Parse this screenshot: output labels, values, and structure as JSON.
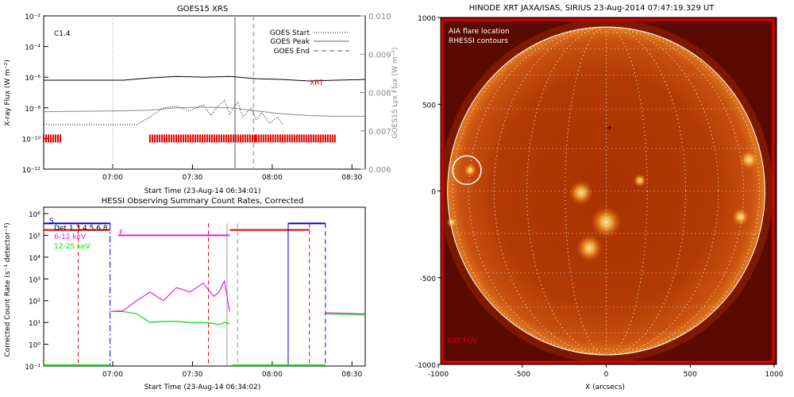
{
  "chart_data": [
    {
      "type": "line",
      "title": "GOES15 XRS",
      "xlabel": "Start Time (23-Aug-14 06:34:01)",
      "ylabel": "X-ray Flux (W m⁻²)",
      "ylabel_right": "GOES15 Lyx Flux (W m⁻²)",
      "annotation": "C1.4",
      "x_ticks": [
        "07:00",
        "07:30",
        "08:00",
        "08:30"
      ],
      "x_range_minutes": [
        0,
        121
      ],
      "y_ticks": [
        "10⁻²",
        "10⁻⁴",
        "10⁻⁶",
        "10⁻⁸",
        "10⁻¹⁰",
        "10⁻¹²"
      ],
      "ylim_log10": [
        -12,
        -2
      ],
      "y_right_ticks": [
        "0.010",
        "0.009",
        "0.008",
        "0.007",
        "0.006"
      ],
      "legend": [
        "GOES Start",
        "GOES Peak",
        "GOES End"
      ],
      "legend_position": "top-right",
      "series_label": "XRT",
      "event_lines_minutes": {
        "start": 26,
        "peak": 72,
        "end": 79
      },
      "series": [
        {
          "name": "XRT",
          "color": "#000000",
          "x": [
            0,
            20,
            30,
            40,
            50,
            60,
            70,
            80,
            90,
            100,
            110,
            121
          ],
          "log10_y": [
            -6.2,
            -6.2,
            -6.2,
            -6.05,
            -5.95,
            -6.0,
            -5.95,
            -6.1,
            -6.15,
            -6.25,
            -6.2,
            -6.15
          ]
        },
        {
          "color": "#888888",
          "x": [
            0,
            30,
            40,
            50,
            60,
            70,
            80,
            90,
            100,
            110,
            121
          ],
          "log10_y": [
            -8.25,
            -8.2,
            -8.15,
            -8.0,
            -7.95,
            -8.0,
            -8.2,
            -8.4,
            -8.5,
            -8.55,
            -8.55
          ]
        },
        {
          "color": "#000000",
          "style": "dotted",
          "x": [
            0,
            35,
            40,
            45,
            50,
            55,
            60,
            63,
            65,
            68,
            70,
            73,
            75,
            78,
            80,
            82,
            85,
            88,
            90
          ],
          "log10_y": [
            -9.1,
            -9.1,
            -8.6,
            -8.0,
            -7.9,
            -8.2,
            -7.8,
            -8.5,
            -8.0,
            -7.5,
            -8.4,
            -7.6,
            -8.6,
            -8.0,
            -8.8,
            -8.3,
            -9.0,
            -8.6,
            -9.1
          ]
        }
      ],
      "red_bar_segments_minutes": [
        [
          0,
          7
        ],
        [
          40,
          80
        ],
        [
          80,
          110
        ]
      ]
    },
    {
      "type": "line",
      "title": "HESSI Observing Summary Count Rates, Corrected",
      "xlabel": "Start Time (23-Aug-14 06:34:02)",
      "ylabel": "Corrected Count Rate (s⁻¹ detector⁻¹)",
      "x_ticks": [
        "07:00",
        "07:30",
        "08:00",
        "08:30"
      ],
      "x_range_minutes": [
        0,
        121
      ],
      "y_ticks": [
        "10⁶",
        "10⁵",
        "10⁴",
        "10³",
        "10²",
        "10¹",
        "10⁰",
        "10⁻¹"
      ],
      "ylim_log10": [
        -1,
        6
      ],
      "legend": [
        "Det 1,3,4,5,6,8",
        "6-12 keV",
        "12-25 keV"
      ],
      "legend_position": "top-left",
      "state_labels": [
        "S",
        "F"
      ],
      "series": [
        {
          "name": "6-12 keV",
          "color": "#e020e0",
          "x": [
            25,
            30,
            35,
            40,
            45,
            50,
            55,
            60,
            64,
            66,
            68,
            70
          ],
          "log10_y": [
            1.5,
            1.55,
            2.0,
            2.4,
            2.0,
            2.6,
            2.4,
            2.8,
            2.2,
            2.4,
            2.9,
            1.5
          ]
        },
        {
          "name": "12-25 keV",
          "color": "#00dd00",
          "x": [
            25,
            30,
            35,
            40,
            45,
            50,
            55,
            60,
            64,
            66,
            68,
            70
          ],
          "log10_y": [
            1.5,
            1.5,
            1.4,
            1.0,
            1.05,
            1.05,
            1.0,
            1.0,
            0.95,
            0.9,
            1.0,
            0.95
          ]
        },
        {
          "color": "#e020e0",
          "x": [
            106,
            121
          ],
          "log10_y": [
            1.45,
            1.4
          ]
        },
        {
          "color": "#00dd00",
          "x": [
            106,
            121
          ],
          "log10_y": [
            1.4,
            1.35
          ]
        }
      ]
    },
    {
      "type": "scatter",
      "title": "HINODE XRT JAXA/ISAS, SIRIUS 23-Aug-2014 07:47:19.329 UT",
      "xlabel": "X (arcsecs)",
      "ylabel": "",
      "x_ticks": [
        -1000,
        -500,
        0,
        500,
        1000
      ],
      "y_ticks": [
        1000,
        500,
        0,
        -500,
        -1000
      ],
      "xlim": [
        -1000,
        1000
      ],
      "ylim": [
        -1000,
        1000
      ],
      "legend": [
        "AIA flare location",
        "RHESSI contours"
      ],
      "legend_position": "top-left",
      "annotation": "XRT FOV",
      "solar_radius_arcsec": 945,
      "flare_location": [
        -830,
        120
      ]
    }
  ]
}
